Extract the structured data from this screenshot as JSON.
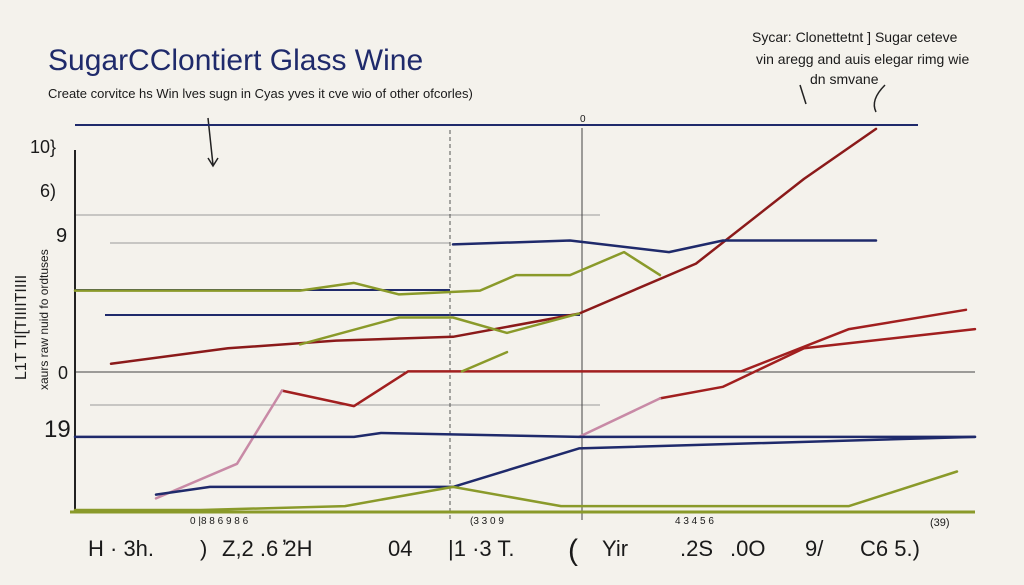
{
  "chart_data": {
    "type": "line",
    "title": "SugarCClontiert Glass  Wine",
    "subtitle": "Create corvitce hs Win lves sugn in Cyas yves it cve wio of other ofcorles)",
    "annotations": [
      "Sycar: Clonettetnt ] Sugar ceteve",
      "vin aregg and auis elegar rimg wie",
      "dn smvane"
    ],
    "y_axis_labels": [
      "L1T TI[TIIIITIIII",
      "xaurs raw nuid fo ordtuses"
    ],
    "y_axis_texts": [
      "10}",
      "6)",
      "9",
      "0",
      "19"
    ],
    "x_axis_texts": [
      "H · 3h.",
      ")",
      "Z,2 .6 ̓2H",
      "04",
      "|1 ·3 T.",
      "(",
      "Yir",
      ".2S",
      ".0O",
      "9/",
      "C6 5.)"
    ],
    "x_axis_small_texts": [
      "0 |8 8 6 9 8 6",
      "(3 3 0 9",
      "4 3 4 5 6",
      "(39)"
    ],
    "top_marker": "0",
    "xlim": [
      0,
      100
    ],
    "ylim": [
      0,
      100
    ],
    "series": [
      {
        "color": "#8b1a1a",
        "x": [
          4,
          17,
          29,
          42,
          56,
          69,
          81,
          89
        ],
        "values": [
          38,
          42,
          44,
          45,
          51,
          64,
          86,
          99
        ]
      },
      {
        "color": "#a11f1f",
        "x": [
          23,
          31,
          37,
          56,
          74,
          86,
          99
        ],
        "values": [
          31,
          27,
          36,
          36,
          36,
          47,
          52
        ]
      },
      {
        "color": "#a11f1f",
        "x": [
          65,
          72,
          81,
          100
        ],
        "values": [
          29,
          32,
          42,
          47
        ]
      },
      {
        "color": "#c88aa6",
        "x": [
          9,
          18,
          23
        ],
        "values": [
          3,
          12,
          31
        ]
      },
      {
        "color": "#c88aa6",
        "x": [
          56,
          65
        ],
        "values": [
          19,
          29
        ]
      },
      {
        "color": "#1f2a6b",
        "x": [
          42,
          55,
          66,
          72,
          89
        ],
        "values": [
          69,
          70,
          67,
          70,
          70
        ]
      },
      {
        "color": "#1f2a6b",
        "x": [
          0,
          31,
          34,
          56,
          100
        ],
        "values": [
          19,
          19,
          20,
          19,
          19
        ]
      },
      {
        "color": "#1f2a6b",
        "x": [
          9,
          15,
          42,
          56,
          100
        ],
        "values": [
          4,
          6,
          6,
          16,
          19
        ]
      },
      {
        "color": "#8a9a2a",
        "x": [
          0,
          25,
          31,
          36,
          45,
          49,
          55,
          61,
          65
        ],
        "values": [
          57,
          57,
          59,
          56,
          57,
          61,
          61,
          67,
          61
        ]
      },
      {
        "color": "#8a9a2a",
        "x": [
          25,
          36,
          42,
          48,
          56
        ],
        "values": [
          43,
          50,
          50,
          46,
          51
        ]
      },
      {
        "color": "#8a9a2a",
        "x": [
          43,
          48
        ],
        "values": [
          36,
          41
        ]
      },
      {
        "color": "#8a9a2a",
        "x": [
          0,
          14,
          30,
          42,
          54,
          86,
          98
        ],
        "values": [
          0,
          0,
          1,
          6,
          1,
          1,
          10
        ]
      }
    ]
  }
}
